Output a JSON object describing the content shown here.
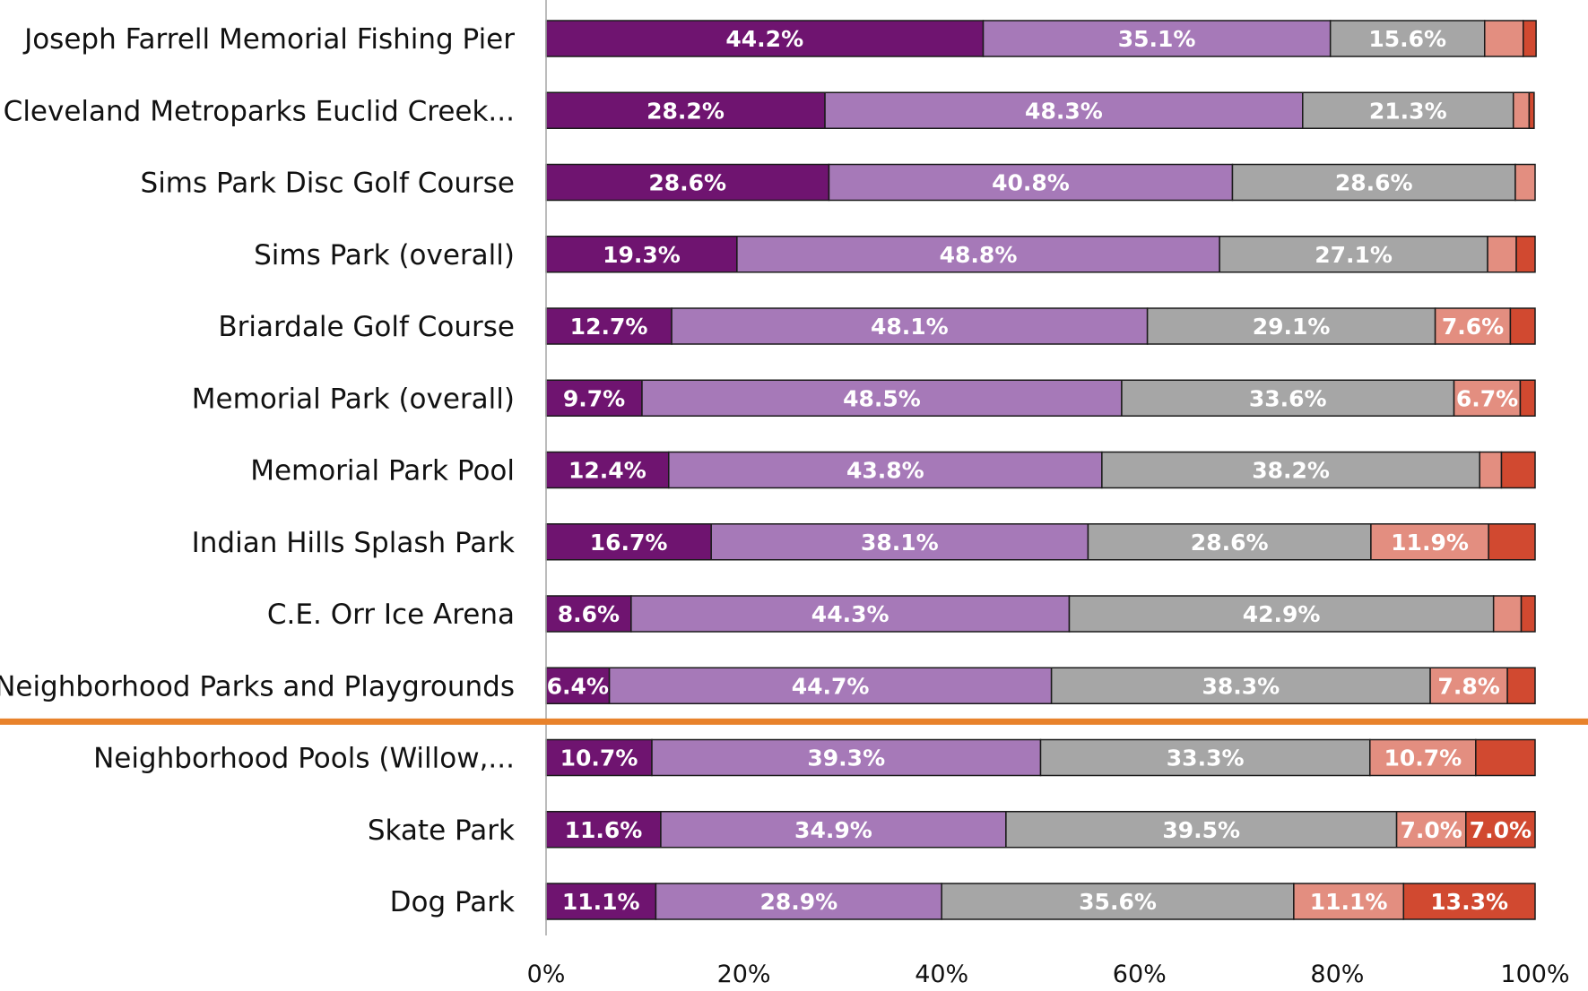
{
  "chart_data": {
    "type": "bar",
    "orientation": "horizontal",
    "stacked": "percent",
    "categories": [
      "Joseph Farrell Memorial Fishing Pier",
      "Cleveland Metroparks Euclid Creek...",
      "Sims Park Disc Golf Course",
      "Sims Park (overall)",
      "Briardale Golf Course",
      "Memorial Park (overall)",
      "Memorial Park Pool",
      "Indian Hills Splash Park",
      "C.E. Orr Ice Arena",
      "Neighborhood Parks and Playgrounds",
      "Neighborhood Pools (Willow,...",
      "Skate Park",
      "Dog Park"
    ],
    "series": [
      {
        "color": "#6f1470",
        "values": [
          44.2,
          28.2,
          28.6,
          19.3,
          12.7,
          9.7,
          12.4,
          16.7,
          8.6,
          6.4,
          10.7,
          11.6,
          11.1
        ]
      },
      {
        "color": "#a679b8",
        "values": [
          35.1,
          48.3,
          40.8,
          48.8,
          48.1,
          48.5,
          43.8,
          38.1,
          44.3,
          44.7,
          39.3,
          34.9,
          28.9
        ]
      },
      {
        "color": "#a6a6a6",
        "values": [
          15.6,
          21.3,
          28.6,
          27.1,
          29.1,
          33.6,
          38.2,
          28.6,
          42.9,
          38.3,
          33.3,
          39.5,
          35.6
        ]
      },
      {
        "color": "#e38e80",
        "values": [
          3.9,
          1.6,
          2.0,
          2.9,
          7.6,
          6.7,
          2.2,
          11.9,
          2.8,
          7.8,
          10.7,
          7.0,
          11.1
        ]
      },
      {
        "color": "#d14930",
        "values": [
          1.3,
          0.5,
          0.0,
          1.9,
          2.5,
          1.5,
          3.4,
          4.7,
          1.4,
          2.8,
          6.0,
          7.0,
          13.3
        ]
      }
    ],
    "data_labels": [
      [
        "44.2%",
        "35.1%",
        "15.6%",
        "",
        ""
      ],
      [
        "28.2%",
        "48.3%",
        "21.3%",
        "",
        ""
      ],
      [
        "28.6%",
        "40.8%",
        "28.6%",
        "",
        ""
      ],
      [
        "19.3%",
        "48.8%",
        "27.1%",
        "",
        ""
      ],
      [
        "12.7%",
        "48.1%",
        "29.1%",
        "7.6%",
        ""
      ],
      [
        "9.7%",
        "48.5%",
        "33.6%",
        "6.7%",
        ""
      ],
      [
        "12.4%",
        "43.8%",
        "38.2%",
        "",
        ""
      ],
      [
        "16.7%",
        "38.1%",
        "28.6%",
        "11.9%",
        ""
      ],
      [
        "8.6%",
        "44.3%",
        "42.9%",
        "",
        ""
      ],
      [
        "6.4%",
        "44.7%",
        "38.3%",
        "7.8%",
        ""
      ],
      [
        "10.7%",
        "39.3%",
        "33.3%",
        "10.7%",
        ""
      ],
      [
        "11.6%",
        "34.9%",
        "39.5%",
        "7.0%",
        "7.0%"
      ],
      [
        "11.1%",
        "28.9%",
        "35.6%",
        "11.1%",
        "13.3%"
      ]
    ],
    "xlim": [
      0,
      100
    ],
    "xticks": [
      0,
      20,
      40,
      60,
      80,
      100
    ],
    "xtick_labels": [
      "0%",
      "20%",
      "40%",
      "60%",
      "80%",
      "100%"
    ],
    "separator": {
      "after_category_index": 9,
      "color": "#e8822b"
    },
    "grid": false,
    "legend": "none",
    "title": "",
    "xlabel": "",
    "ylabel": ""
  }
}
